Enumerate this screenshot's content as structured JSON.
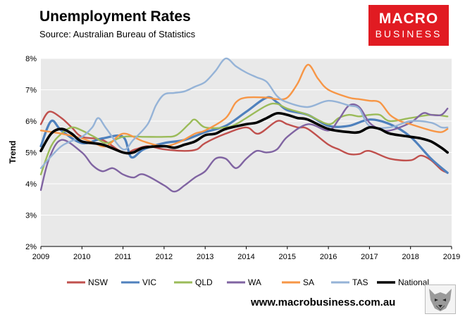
{
  "header": {
    "title": "Unemployment Rates",
    "subtitle": "Source: Australian Bureau of Statistics"
  },
  "logo": {
    "line1": "MACRO",
    "line2": "BUSINESS"
  },
  "footer": {
    "url": "www.macrobusiness.com.au"
  },
  "chart_data": {
    "type": "line",
    "title": "Unemployment Rates",
    "xlabel": "",
    "ylabel": "Trend",
    "xlim": [
      2009,
      2019
    ],
    "ylim": [
      2,
      8
    ],
    "x_ticks": [
      "2009",
      "2010",
      "2011",
      "2012",
      "2013",
      "2014",
      "2015",
      "2016",
      "2017",
      "2018",
      "2019"
    ],
    "y_ticks": [
      "2%",
      "3%",
      "4%",
      "5%",
      "6%",
      "7%",
      "8%"
    ],
    "grid": "horizontal",
    "legend_position": "bottom",
    "series": [
      {
        "name": "NSW",
        "color": "#c0504d",
        "points": [
          [
            2009,
            5.9
          ],
          [
            2009.2,
            6.3
          ],
          [
            2009.5,
            6.1
          ],
          [
            2009.75,
            5.8
          ],
          [
            2010,
            5.5
          ],
          [
            2010.5,
            5.4
          ],
          [
            2011,
            5.0
          ],
          [
            2011.3,
            5.1
          ],
          [
            2011.6,
            5.2
          ],
          [
            2012,
            5.1
          ],
          [
            2012.5,
            5.05
          ],
          [
            2012.8,
            5.1
          ],
          [
            2013,
            5.3
          ],
          [
            2013.5,
            5.6
          ],
          [
            2014,
            5.8
          ],
          [
            2014.3,
            5.6
          ],
          [
            2014.75,
            6.0
          ],
          [
            2015,
            5.9
          ],
          [
            2015.25,
            5.8
          ],
          [
            2015.5,
            5.75
          ],
          [
            2016,
            5.25
          ],
          [
            2016.25,
            5.1
          ],
          [
            2016.5,
            4.95
          ],
          [
            2016.75,
            4.95
          ],
          [
            2017,
            5.05
          ],
          [
            2017.5,
            4.8
          ],
          [
            2018,
            4.75
          ],
          [
            2018.25,
            4.9
          ],
          [
            2018.5,
            4.75
          ],
          [
            2018.75,
            4.45
          ],
          [
            2018.9,
            4.35
          ]
        ]
      },
      {
        "name": "VIC",
        "color": "#4f81bd",
        "points": [
          [
            2009,
            5.2
          ],
          [
            2009.25,
            6.0
          ],
          [
            2009.5,
            5.7
          ],
          [
            2010,
            5.3
          ],
          [
            2010.5,
            5.45
          ],
          [
            2011,
            5.5
          ],
          [
            2011.2,
            4.85
          ],
          [
            2011.5,
            5.1
          ],
          [
            2012,
            5.3
          ],
          [
            2012.5,
            5.4
          ],
          [
            2013,
            5.65
          ],
          [
            2013.5,
            5.85
          ],
          [
            2014,
            6.3
          ],
          [
            2014.5,
            6.75
          ],
          [
            2014.75,
            6.6
          ],
          [
            2015,
            6.35
          ],
          [
            2015.5,
            6.2
          ],
          [
            2016,
            5.85
          ],
          [
            2016.5,
            5.85
          ],
          [
            2017,
            6.05
          ],
          [
            2017.5,
            5.9
          ],
          [
            2018,
            5.5
          ],
          [
            2018.5,
            4.8
          ],
          [
            2018.9,
            4.35
          ]
        ]
      },
      {
        "name": "QLD",
        "color": "#9bbb59",
        "points": [
          [
            2009,
            4.3
          ],
          [
            2009.25,
            5.2
          ],
          [
            2009.5,
            5.6
          ],
          [
            2009.75,
            5.8
          ],
          [
            2010,
            5.7
          ],
          [
            2010.3,
            5.5
          ],
          [
            2010.6,
            5.3
          ],
          [
            2011,
            5.5
          ],
          [
            2011.5,
            5.5
          ],
          [
            2012,
            5.5
          ],
          [
            2012.3,
            5.55
          ],
          [
            2012.6,
            5.9
          ],
          [
            2012.75,
            6.05
          ],
          [
            2013,
            5.8
          ],
          [
            2013.5,
            5.8
          ],
          [
            2013.75,
            5.9
          ],
          [
            2014,
            6.1
          ],
          [
            2014.5,
            6.5
          ],
          [
            2014.75,
            6.55
          ],
          [
            2015,
            6.4
          ],
          [
            2015.5,
            6.2
          ],
          [
            2016,
            5.9
          ],
          [
            2016.25,
            6.1
          ],
          [
            2016.5,
            6.2
          ],
          [
            2016.75,
            6.15
          ],
          [
            2017,
            6.2
          ],
          [
            2017.25,
            6.2
          ],
          [
            2017.5,
            6.0
          ],
          [
            2018,
            6.1
          ],
          [
            2018.5,
            6.2
          ],
          [
            2018.9,
            6.15
          ]
        ]
      },
      {
        "name": "WA",
        "color": "#8064a2",
        "points": [
          [
            2009,
            3.8
          ],
          [
            2009.2,
            4.8
          ],
          [
            2009.5,
            5.4
          ],
          [
            2010,
            5.0
          ],
          [
            2010.25,
            4.6
          ],
          [
            2010.5,
            4.4
          ],
          [
            2010.75,
            4.5
          ],
          [
            2011,
            4.3
          ],
          [
            2011.25,
            4.2
          ],
          [
            2011.5,
            4.3
          ],
          [
            2012,
            3.95
          ],
          [
            2012.25,
            3.75
          ],
          [
            2012.5,
            3.95
          ],
          [
            2012.75,
            4.2
          ],
          [
            2013,
            4.4
          ],
          [
            2013.25,
            4.8
          ],
          [
            2013.5,
            4.8
          ],
          [
            2013.75,
            4.5
          ],
          [
            2014,
            4.8
          ],
          [
            2014.25,
            5.05
          ],
          [
            2014.5,
            5.0
          ],
          [
            2014.75,
            5.1
          ],
          [
            2015,
            5.5
          ],
          [
            2015.5,
            5.9
          ],
          [
            2016,
            5.7
          ],
          [
            2016.25,
            6.05
          ],
          [
            2016.5,
            6.5
          ],
          [
            2016.75,
            6.45
          ],
          [
            2017,
            5.95
          ],
          [
            2017.25,
            5.75
          ],
          [
            2017.5,
            5.7
          ],
          [
            2018,
            5.95
          ],
          [
            2018.3,
            6.25
          ],
          [
            2018.5,
            6.2
          ],
          [
            2018.75,
            6.2
          ],
          [
            2018.9,
            6.4
          ]
        ]
      },
      {
        "name": "SA",
        "color": "#f79646",
        "points": [
          [
            2009,
            5.7
          ],
          [
            2009.5,
            5.6
          ],
          [
            2010,
            5.45
          ],
          [
            2010.3,
            5.3
          ],
          [
            2010.6,
            5.2
          ],
          [
            2011,
            5.6
          ],
          [
            2011.5,
            5.35
          ],
          [
            2012,
            5.2
          ],
          [
            2012.4,
            5.35
          ],
          [
            2012.75,
            5.6
          ],
          [
            2013,
            5.7
          ],
          [
            2013.5,
            6.1
          ],
          [
            2013.75,
            6.6
          ],
          [
            2014,
            6.75
          ],
          [
            2014.5,
            6.75
          ],
          [
            2014.75,
            6.7
          ],
          [
            2015,
            6.75
          ],
          [
            2015.25,
            7.2
          ],
          [
            2015.5,
            7.8
          ],
          [
            2015.75,
            7.35
          ],
          [
            2016,
            7.0
          ],
          [
            2016.5,
            6.75
          ],
          [
            2016.75,
            6.7
          ],
          [
            2017,
            6.65
          ],
          [
            2017.25,
            6.6
          ],
          [
            2017.5,
            6.2
          ],
          [
            2017.75,
            6.0
          ],
          [
            2018,
            5.9
          ],
          [
            2018.5,
            5.7
          ],
          [
            2018.75,
            5.65
          ],
          [
            2018.9,
            5.75
          ]
        ]
      },
      {
        "name": "TAS",
        "color": "#95b3d7",
        "points": [
          [
            2009,
            4.5
          ],
          [
            2009.5,
            5.2
          ],
          [
            2010,
            5.5
          ],
          [
            2010.25,
            5.8
          ],
          [
            2010.4,
            6.1
          ],
          [
            2010.6,
            5.75
          ],
          [
            2011,
            5.1
          ],
          [
            2011.25,
            5.4
          ],
          [
            2011.6,
            5.9
          ],
          [
            2011.8,
            6.5
          ],
          [
            2012,
            6.85
          ],
          [
            2012.25,
            6.9
          ],
          [
            2012.5,
            6.95
          ],
          [
            2012.75,
            7.1
          ],
          [
            2013,
            7.25
          ],
          [
            2013.25,
            7.6
          ],
          [
            2013.5,
            8.0
          ],
          [
            2013.75,
            7.75
          ],
          [
            2014,
            7.55
          ],
          [
            2014.25,
            7.4
          ],
          [
            2014.5,
            7.25
          ],
          [
            2014.75,
            6.8
          ],
          [
            2015,
            6.6
          ],
          [
            2015.5,
            6.45
          ],
          [
            2016,
            6.65
          ],
          [
            2016.5,
            6.5
          ],
          [
            2016.75,
            6.4
          ],
          [
            2017,
            5.85
          ],
          [
            2017.5,
            5.8
          ],
          [
            2018,
            6.0
          ],
          [
            2018.5,
            5.95
          ],
          [
            2018.75,
            5.8
          ],
          [
            2018.9,
            5.8
          ]
        ]
      },
      {
        "name": "National",
        "color": "#000000",
        "points": [
          [
            2009,
            5.05
          ],
          [
            2009.25,
            5.6
          ],
          [
            2009.5,
            5.75
          ],
          [
            2009.75,
            5.6
          ],
          [
            2010,
            5.35
          ],
          [
            2010.5,
            5.25
          ],
          [
            2011,
            5.0
          ],
          [
            2011.25,
            5.0
          ],
          [
            2011.5,
            5.15
          ],
          [
            2012,
            5.2
          ],
          [
            2012.25,
            5.15
          ],
          [
            2012.5,
            5.25
          ],
          [
            2012.75,
            5.35
          ],
          [
            2013,
            5.55
          ],
          [
            2013.25,
            5.6
          ],
          [
            2013.5,
            5.75
          ],
          [
            2014,
            5.9
          ],
          [
            2014.25,
            5.95
          ],
          [
            2014.5,
            6.1
          ],
          [
            2014.75,
            6.25
          ],
          [
            2015,
            6.2
          ],
          [
            2015.25,
            6.1
          ],
          [
            2015.5,
            6.05
          ],
          [
            2016,
            5.75
          ],
          [
            2016.5,
            5.65
          ],
          [
            2016.75,
            5.65
          ],
          [
            2017,
            5.8
          ],
          [
            2017.25,
            5.75
          ],
          [
            2017.5,
            5.6
          ],
          [
            2018,
            5.5
          ],
          [
            2018.25,
            5.45
          ],
          [
            2018.5,
            5.35
          ],
          [
            2018.75,
            5.15
          ],
          [
            2018.9,
            5.0
          ]
        ]
      }
    ]
  }
}
